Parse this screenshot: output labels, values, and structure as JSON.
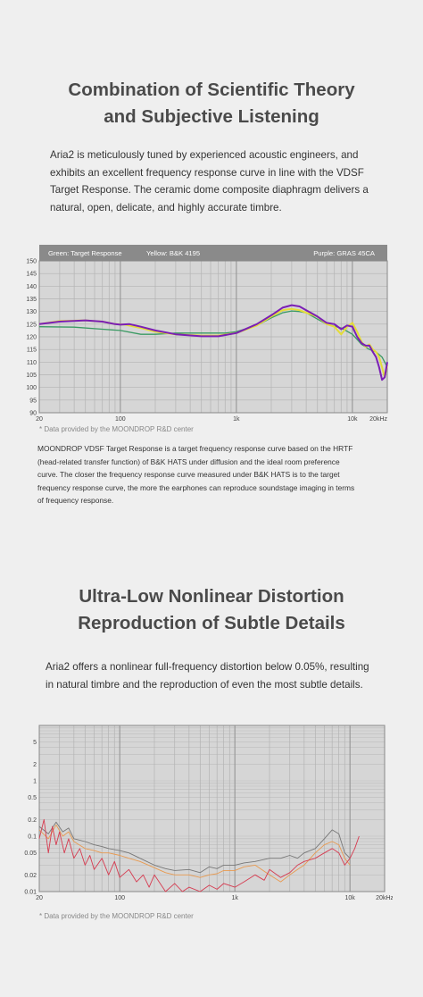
{
  "section1": {
    "title_line1": "Combination of Scientific Theory",
    "title_line2": "and Subjective Listening",
    "paragraph": [
      "Aria2 is meticulously tuned by experienced acoustic engineers, and",
      "exhibits an excellent frequency response curve in line with the VDSF",
      "Target Response. The ceramic dome composite diaphragm delivers a",
      "natural, open, delicate, and highly accurate timbre."
    ],
    "note": "* Data provided by the MOONDROP R&D center",
    "description": [
      "MOONDROP VDSF Target Response is a target frequency response curve based on the HRTF",
      "(head-related transfer function) of B&K HATS under diffusion and the ideal room preference",
      "curve. The closer the frequency response curve measured under B&K HATS is to the target",
      "frequency response curve, the more the earphones can reproduce soundstage imaging in terms",
      "of frequency response."
    ]
  },
  "section2": {
    "title_line1": "Ultra-Low Nonlinear Distortion",
    "title_line2": "Reproduction of Subtle Details",
    "paragraph": [
      "Aria2 offers a nonlinear full-frequency distortion below 0.05%, resulting",
      "in natural timbre and the reproduction of even the most subtle details."
    ],
    "note": "* Data provided by the MOONDROP R&D center"
  },
  "colors": {
    "background": "#efefef",
    "plot_bg": "#d6d6d6",
    "header_bg": "#8a8a8a",
    "green": "#3a9a63",
    "yellow": "#e4dc38",
    "purple": "#7b1fb5",
    "red": "#d63b50",
    "orange": "#e89a50",
    "gray_line": "#777777"
  },
  "chart_data": [
    {
      "type": "line",
      "header_left": [
        "Green: Target Response",
        "Yellow: B&K 4195"
      ],
      "header_right": "Purple: GRAS 45CA",
      "x_scale": "log",
      "xlim": [
        20,
        20000
      ],
      "ylim": [
        90,
        150
      ],
      "y_ticks": [
        90,
        95,
        100,
        105,
        110,
        115,
        120,
        125,
        130,
        135,
        140,
        145,
        150
      ],
      "x_ticks": [
        {
          "v": 20,
          "label": "20"
        },
        {
          "v": 100,
          "label": "100"
        },
        {
          "v": 1000,
          "label": "1k"
        },
        {
          "v": 10000,
          "label": "10k"
        },
        {
          "v": 20000,
          "label": "20kHz"
        }
      ],
      "grid": true,
      "series": [
        {
          "name": "Green: Target Response",
          "color": "#3a9a63",
          "points": [
            [
              20,
              124
            ],
            [
              40,
              123.8
            ],
            [
              70,
              123
            ],
            [
              100,
              122.5
            ],
            [
              150,
              121
            ],
            [
              200,
              121
            ],
            [
              300,
              121.5
            ],
            [
              500,
              121.5
            ],
            [
              800,
              121.5
            ],
            [
              1000,
              122
            ],
            [
              1500,
              124.5
            ],
            [
              2000,
              127.5
            ],
            [
              2500,
              129.5
            ],
            [
              3000,
              130.2
            ],
            [
              3500,
              130
            ],
            [
              4000,
              129.5
            ],
            [
              5000,
              127
            ],
            [
              6000,
              125
            ],
            [
              8000,
              123.5
            ],
            [
              10000,
              121
            ],
            [
              12000,
              117
            ],
            [
              14000,
              115
            ],
            [
              16000,
              114
            ],
            [
              18000,
              112
            ],
            [
              20000,
              108
            ]
          ]
        },
        {
          "name": "Yellow: B&K 4195",
          "color": "#e4dc38",
          "points": [
            [
              20,
              125
            ],
            [
              30,
              126.2
            ],
            [
              50,
              126.5
            ],
            [
              70,
              126
            ],
            [
              90,
              125
            ],
            [
              110,
              124.8
            ],
            [
              150,
              123.5
            ],
            [
              200,
              122
            ],
            [
              300,
              121
            ],
            [
              500,
              120.5
            ],
            [
              700,
              120.5
            ],
            [
              1000,
              121.5
            ],
            [
              1500,
              124.5
            ],
            [
              2000,
              128
            ],
            [
              2500,
              130.5
            ],
            [
              3000,
              131
            ],
            [
              3500,
              130.5
            ],
            [
              4000,
              129.5
            ],
            [
              5000,
              128
            ],
            [
              6000,
              125
            ],
            [
              7000,
              124
            ],
            [
              8000,
              121
            ],
            [
              9000,
              124
            ],
            [
              10000,
              125.5
            ],
            [
              11000,
              122
            ],
            [
              12000,
              118
            ],
            [
              13000,
              116
            ],
            [
              14000,
              117
            ],
            [
              15000,
              115
            ],
            [
              16000,
              114
            ],
            [
              17000,
              112
            ],
            [
              18000,
              108
            ],
            [
              19000,
              104
            ],
            [
              20000,
              109
            ]
          ]
        },
        {
          "name": "Purple: GRAS 45CA",
          "color": "#7b1fb5",
          "points": [
            [
              20,
              125
            ],
            [
              30,
              126
            ],
            [
              50,
              126.5
            ],
            [
              70,
              126
            ],
            [
              90,
              125
            ],
            [
              100,
              124.8
            ],
            [
              120,
              125
            ],
            [
              150,
              124
            ],
            [
              200,
              122.5
            ],
            [
              300,
              121
            ],
            [
              500,
              120.2
            ],
            [
              700,
              120.2
            ],
            [
              1000,
              121.5
            ],
            [
              1500,
              125
            ],
            [
              2000,
              128.5
            ],
            [
              2500,
              131.5
            ],
            [
              3000,
              132.5
            ],
            [
              3500,
              132
            ],
            [
              4000,
              130.5
            ],
            [
              5000,
              128
            ],
            [
              6000,
              125.5
            ],
            [
              7000,
              125
            ],
            [
              8000,
              123
            ],
            [
              9000,
              124.5
            ],
            [
              10000,
              124
            ],
            [
              11000,
              120
            ],
            [
              12000,
              117.5
            ],
            [
              13000,
              116.5
            ],
            [
              14000,
              116.5
            ],
            [
              15000,
              114
            ],
            [
              16000,
              112
            ],
            [
              17000,
              108
            ],
            [
              18000,
              103
            ],
            [
              19000,
              104
            ],
            [
              20000,
              110
            ]
          ]
        }
      ]
    },
    {
      "type": "line",
      "x_scale": "log",
      "y_scale": "log",
      "xlim": [
        20,
        20000
      ],
      "ylim": [
        0.01,
        10
      ],
      "y_ticks": [
        {
          "v": 0.01,
          "label": "0.01"
        },
        {
          "v": 0.02,
          "label": "0.02"
        },
        {
          "v": 0.05,
          "label": "0.05"
        },
        {
          "v": 0.1,
          "label": "0.1"
        },
        {
          "v": 0.2,
          "label": "0.2"
        },
        {
          "v": 0.5,
          "label": "0.5"
        },
        {
          "v": 1,
          "label": "1"
        },
        {
          "v": 2,
          "label": "2"
        },
        {
          "v": 5,
          "label": "5"
        }
      ],
      "x_ticks": [
        {
          "v": 20,
          "label": "20"
        },
        {
          "v": 100,
          "label": "100"
        },
        {
          "v": 1000,
          "label": "1k"
        },
        {
          "v": 10000,
          "label": "10k"
        },
        {
          "v": 20000,
          "label": "20kHz"
        }
      ],
      "grid": true,
      "series": [
        {
          "color": "#777777",
          "points": [
            [
              20,
              0.15
            ],
            [
              24,
              0.11
            ],
            [
              28,
              0.18
            ],
            [
              32,
              0.12
            ],
            [
              36,
              0.14
            ],
            [
              40,
              0.09
            ],
            [
              50,
              0.08
            ],
            [
              60,
              0.07
            ],
            [
              70,
              0.065
            ],
            [
              80,
              0.06
            ],
            [
              100,
              0.055
            ],
            [
              120,
              0.05
            ],
            [
              150,
              0.04
            ],
            [
              200,
              0.03
            ],
            [
              250,
              0.026
            ],
            [
              300,
              0.024
            ],
            [
              400,
              0.025
            ],
            [
              500,
              0.022
            ],
            [
              600,
              0.028
            ],
            [
              700,
              0.026
            ],
            [
              800,
              0.03
            ],
            [
              1000,
              0.03
            ],
            [
              1200,
              0.033
            ],
            [
              1500,
              0.035
            ],
            [
              2000,
              0.04
            ],
            [
              2500,
              0.04
            ],
            [
              3000,
              0.045
            ],
            [
              3500,
              0.04
            ],
            [
              4000,
              0.05
            ],
            [
              5000,
              0.06
            ],
            [
              6000,
              0.09
            ],
            [
              7000,
              0.13
            ],
            [
              8000,
              0.11
            ],
            [
              9000,
              0.05
            ],
            [
              10000,
              0.04
            ]
          ]
        },
        {
          "color": "#e89a50",
          "points": [
            [
              20,
              0.13
            ],
            [
              24,
              0.09
            ],
            [
              28,
              0.16
            ],
            [
              32,
              0.1
            ],
            [
              36,
              0.12
            ],
            [
              40,
              0.08
            ],
            [
              50,
              0.06
            ],
            [
              60,
              0.055
            ],
            [
              70,
              0.05
            ],
            [
              80,
              0.05
            ],
            [
              100,
              0.045
            ],
            [
              120,
              0.04
            ],
            [
              150,
              0.035
            ],
            [
              200,
              0.027
            ],
            [
              250,
              0.022
            ],
            [
              300,
              0.02
            ],
            [
              400,
              0.02
            ],
            [
              500,
              0.018
            ],
            [
              600,
              0.02
            ],
            [
              700,
              0.021
            ],
            [
              800,
              0.024
            ],
            [
              1000,
              0.024
            ],
            [
              1200,
              0.028
            ],
            [
              1500,
              0.03
            ],
            [
              2000,
              0.02
            ],
            [
              2500,
              0.015
            ],
            [
              3000,
              0.02
            ],
            [
              3500,
              0.025
            ],
            [
              4000,
              0.03
            ],
            [
              5000,
              0.05
            ],
            [
              6000,
              0.07
            ],
            [
              7000,
              0.08
            ],
            [
              8000,
              0.07
            ],
            [
              9000,
              0.04
            ],
            [
              10000,
              0.03
            ]
          ]
        },
        {
          "color": "#d63b50",
          "points": [
            [
              20,
              0.09
            ],
            [
              22,
              0.2
            ],
            [
              24,
              0.05
            ],
            [
              26,
              0.15
            ],
            [
              28,
              0.07
            ],
            [
              30,
              0.12
            ],
            [
              33,
              0.05
            ],
            [
              36,
              0.09
            ],
            [
              40,
              0.04
            ],
            [
              45,
              0.06
            ],
            [
              50,
              0.03
            ],
            [
              55,
              0.045
            ],
            [
              60,
              0.025
            ],
            [
              70,
              0.04
            ],
            [
              80,
              0.02
            ],
            [
              90,
              0.035
            ],
            [
              100,
              0.018
            ],
            [
              120,
              0.025
            ],
            [
              140,
              0.015
            ],
            [
              160,
              0.02
            ],
            [
              180,
              0.012
            ],
            [
              200,
              0.02
            ],
            [
              250,
              0.01
            ],
            [
              300,
              0.014
            ],
            [
              350,
              0.01
            ],
            [
              400,
              0.012
            ],
            [
              500,
              0.01
            ],
            [
              600,
              0.013
            ],
            [
              700,
              0.011
            ],
            [
              800,
              0.014
            ],
            [
              1000,
              0.012
            ],
            [
              1200,
              0.015
            ],
            [
              1500,
              0.02
            ],
            [
              1800,
              0.016
            ],
            [
              2000,
              0.025
            ],
            [
              2500,
              0.018
            ],
            [
              3000,
              0.022
            ],
            [
              3500,
              0.03
            ],
            [
              4000,
              0.035
            ],
            [
              5000,
              0.04
            ],
            [
              6000,
              0.05
            ],
            [
              7000,
              0.06
            ],
            [
              8000,
              0.05
            ],
            [
              9000,
              0.03
            ],
            [
              10000,
              0.04
            ],
            [
              11000,
              0.06
            ],
            [
              12000,
              0.1
            ]
          ]
        }
      ]
    }
  ]
}
